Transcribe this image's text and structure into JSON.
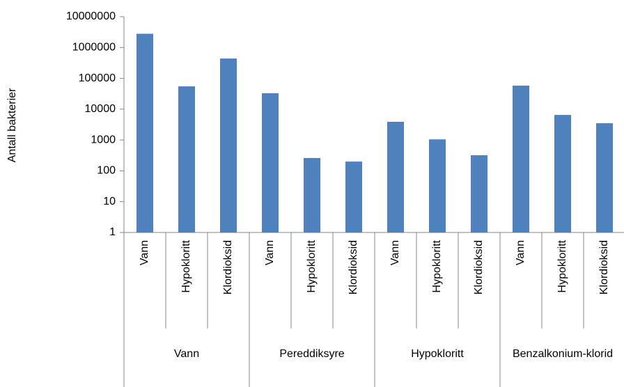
{
  "chart_data": {
    "type": "bar",
    "y_label": "Antall bakterier",
    "log_scale": true,
    "color": "#4f81bd",
    "ylim": [
      1,
      10000000
    ],
    "yticks": [
      1,
      10,
      100,
      1000,
      10000,
      100000,
      1000000,
      10000000
    ],
    "groups": [
      {
        "label": "Vann",
        "categories": [
          "Vann",
          "Hypokloritt",
          "Klordioksid"
        ],
        "values": [
          2800000,
          55000,
          440000
        ]
      },
      {
        "label": "Pereddiksyre",
        "categories": [
          "Vann",
          "Hypokloritt",
          "Klordioksid"
        ],
        "values": [
          33000,
          260,
          200
        ]
      },
      {
        "label": "Hypokloritt",
        "categories": [
          "Vann",
          "Hypokloritt",
          "Klordioksid"
        ],
        "values": [
          3900,
          1050,
          320
        ]
      },
      {
        "label": "Benzalkonium-klorid",
        "categories": [
          "Vann",
          "Hypokloritt",
          "Klordioksid"
        ],
        "values": [
          58000,
          6500,
          3500
        ]
      }
    ]
  }
}
